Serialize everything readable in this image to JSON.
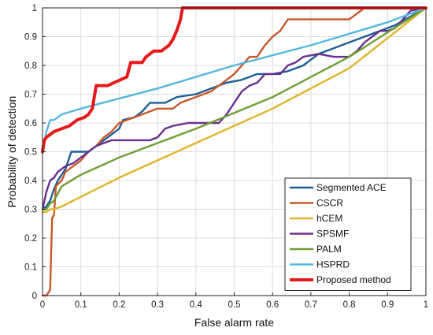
{
  "chart_data": {
    "type": "line",
    "title": "",
    "xlabel": "False alarm rate",
    "ylabel": "Probability of detection",
    "xlim": [
      0,
      1
    ],
    "ylim": [
      0,
      1
    ],
    "xticks": [
      "0",
      "0.1",
      "0.2",
      "0.3",
      "0.4",
      "0.5",
      "0.6",
      "0.7",
      "0.8",
      "0.9",
      "1"
    ],
    "yticks": [
      "0",
      "0.1",
      "0.2",
      "0.3",
      "0.4",
      "0.5",
      "0.6",
      "0.7",
      "0.8",
      "0.9",
      "1"
    ],
    "xtick_values": [
      0,
      0.1,
      0.2,
      0.3,
      0.4,
      0.5,
      0.6,
      0.7,
      0.8,
      0.9,
      1
    ],
    "ytick_values": [
      0,
      0.1,
      0.2,
      0.3,
      0.4,
      0.5,
      0.6,
      0.7,
      0.8,
      0.9,
      1
    ],
    "grid": true,
    "legend_position": "bottom-right",
    "series": [
      {
        "name": "Segmented ACE",
        "color": "#1f5f96",
        "points": [
          [
            0,
            0.3
          ],
          [
            0.01,
            0.31
          ],
          [
            0.02,
            0.33
          ],
          [
            0.03,
            0.37
          ],
          [
            0.04,
            0.4
          ],
          [
            0.05,
            0.42
          ],
          [
            0.06,
            0.44
          ],
          [
            0.075,
            0.5
          ],
          [
            0.1,
            0.5
          ],
          [
            0.12,
            0.5
          ],
          [
            0.14,
            0.52
          ],
          [
            0.17,
            0.55
          ],
          [
            0.2,
            0.58
          ],
          [
            0.21,
            0.61
          ],
          [
            0.24,
            0.62
          ],
          [
            0.26,
            0.64
          ],
          [
            0.28,
            0.67
          ],
          [
            0.32,
            0.67
          ],
          [
            0.35,
            0.69
          ],
          [
            0.4,
            0.7
          ],
          [
            0.44,
            0.72
          ],
          [
            0.48,
            0.74
          ],
          [
            0.52,
            0.75
          ],
          [
            0.56,
            0.77
          ],
          [
            0.6,
            0.77
          ],
          [
            0.64,
            0.78
          ],
          [
            0.68,
            0.8
          ],
          [
            0.72,
            0.84
          ],
          [
            0.76,
            0.86
          ],
          [
            0.8,
            0.88
          ],
          [
            0.84,
            0.9
          ],
          [
            0.88,
            0.92
          ],
          [
            0.92,
            0.94
          ],
          [
            0.96,
            0.97
          ],
          [
            1,
            1
          ]
        ]
      },
      {
        "name": "CSCR",
        "color": "#c8582a",
        "points": [
          [
            0,
            0
          ],
          [
            0.01,
            0
          ],
          [
            0.02,
            0.02
          ],
          [
            0.025,
            0.27
          ],
          [
            0.03,
            0.28
          ],
          [
            0.035,
            0.38
          ],
          [
            0.05,
            0.4
          ],
          [
            0.06,
            0.43
          ],
          [
            0.08,
            0.45
          ],
          [
            0.1,
            0.47
          ],
          [
            0.12,
            0.5
          ],
          [
            0.14,
            0.52
          ],
          [
            0.16,
            0.55
          ],
          [
            0.18,
            0.57
          ],
          [
            0.2,
            0.6
          ],
          [
            0.22,
            0.61
          ],
          [
            0.24,
            0.62
          ],
          [
            0.26,
            0.63
          ],
          [
            0.28,
            0.64
          ],
          [
            0.3,
            0.65
          ],
          [
            0.34,
            0.65
          ],
          [
            0.36,
            0.67
          ],
          [
            0.38,
            0.68
          ],
          [
            0.42,
            0.7
          ],
          [
            0.44,
            0.71
          ],
          [
            0.46,
            0.73
          ],
          [
            0.48,
            0.75
          ],
          [
            0.5,
            0.77
          ],
          [
            0.52,
            0.8
          ],
          [
            0.54,
            0.83
          ],
          [
            0.56,
            0.83
          ],
          [
            0.58,
            0.87
          ],
          [
            0.6,
            0.9
          ],
          [
            0.62,
            0.92
          ],
          [
            0.64,
            0.96
          ],
          [
            0.74,
            0.96
          ],
          [
            0.8,
            0.96
          ],
          [
            0.82,
            0.98
          ],
          [
            0.84,
            1
          ],
          [
            1,
            1
          ]
        ]
      },
      {
        "name": "hCEM",
        "color": "#e0b52c",
        "points": [
          [
            0,
            0.29
          ],
          [
            0.01,
            0.29
          ],
          [
            0.02,
            0.3
          ],
          [
            0.03,
            0.3
          ],
          [
            0.05,
            0.31
          ],
          [
            0.2,
            0.41
          ],
          [
            0.4,
            0.53
          ],
          [
            0.6,
            0.65
          ],
          [
            0.8,
            0.79
          ],
          [
            1,
            1
          ]
        ]
      },
      {
        "name": "SPSMF",
        "color": "#6a2f8e",
        "points": [
          [
            0,
            0.3
          ],
          [
            0.005,
            0.33
          ],
          [
            0.01,
            0.36
          ],
          [
            0.015,
            0.38
          ],
          [
            0.02,
            0.4
          ],
          [
            0.03,
            0.41
          ],
          [
            0.04,
            0.43
          ],
          [
            0.05,
            0.44
          ],
          [
            0.06,
            0.45
          ],
          [
            0.08,
            0.46
          ],
          [
            0.1,
            0.48
          ],
          [
            0.12,
            0.5
          ],
          [
            0.14,
            0.52
          ],
          [
            0.16,
            0.53
          ],
          [
            0.18,
            0.54
          ],
          [
            0.28,
            0.54
          ],
          [
            0.3,
            0.55
          ],
          [
            0.32,
            0.58
          ],
          [
            0.34,
            0.59
          ],
          [
            0.38,
            0.6
          ],
          [
            0.46,
            0.6
          ],
          [
            0.48,
            0.63
          ],
          [
            0.5,
            0.67
          ],
          [
            0.52,
            0.71
          ],
          [
            0.54,
            0.73
          ],
          [
            0.56,
            0.74
          ],
          [
            0.58,
            0.77
          ],
          [
            0.62,
            0.77
          ],
          [
            0.64,
            0.8
          ],
          [
            0.66,
            0.81
          ],
          [
            0.68,
            0.83
          ],
          [
            0.72,
            0.84
          ],
          [
            0.76,
            0.83
          ],
          [
            0.8,
            0.83
          ],
          [
            0.82,
            0.85
          ],
          [
            0.84,
            0.88
          ],
          [
            0.86,
            0.9
          ],
          [
            0.88,
            0.92
          ],
          [
            0.9,
            0.92
          ],
          [
            0.92,
            0.93
          ],
          [
            0.94,
            0.96
          ],
          [
            0.96,
            0.99
          ],
          [
            1,
            1
          ]
        ]
      },
      {
        "name": "PALM",
        "color": "#6e9e35",
        "points": [
          [
            0,
            0.3
          ],
          [
            0.01,
            0.3
          ],
          [
            0.02,
            0.32
          ],
          [
            0.03,
            0.33
          ],
          [
            0.05,
            0.38
          ],
          [
            0.1,
            0.42
          ],
          [
            0.2,
            0.48
          ],
          [
            0.4,
            0.58
          ],
          [
            0.6,
            0.69
          ],
          [
            0.8,
            0.83
          ],
          [
            1,
            1
          ]
        ]
      },
      {
        "name": "HSPRD",
        "color": "#55b8e0",
        "points": [
          [
            0,
            0.52
          ],
          [
            0.005,
            0.53
          ],
          [
            0.01,
            0.57
          ],
          [
            0.02,
            0.61
          ],
          [
            0.03,
            0.61
          ],
          [
            0.04,
            0.62
          ],
          [
            0.05,
            0.63
          ],
          [
            0.1,
            0.65
          ],
          [
            0.3,
            0.72
          ],
          [
            0.5,
            0.8
          ],
          [
            0.7,
            0.87
          ],
          [
            0.9,
            0.95
          ],
          [
            1,
            1
          ]
        ]
      },
      {
        "name": "Proposed method",
        "color": "#e51b1b",
        "points": [
          [
            0,
            0.5
          ],
          [
            0.005,
            0.54
          ],
          [
            0.01,
            0.55
          ],
          [
            0.02,
            0.56
          ],
          [
            0.03,
            0.57
          ],
          [
            0.05,
            0.58
          ],
          [
            0.07,
            0.59
          ],
          [
            0.09,
            0.61
          ],
          [
            0.11,
            0.62
          ],
          [
            0.12,
            0.63
          ],
          [
            0.13,
            0.65
          ],
          [
            0.14,
            0.73
          ],
          [
            0.17,
            0.73
          ],
          [
            0.22,
            0.76
          ],
          [
            0.23,
            0.81
          ],
          [
            0.26,
            0.81
          ],
          [
            0.27,
            0.83
          ],
          [
            0.29,
            0.85
          ],
          [
            0.31,
            0.85
          ],
          [
            0.32,
            0.86
          ],
          [
            0.33,
            0.87
          ],
          [
            0.34,
            0.89
          ],
          [
            0.35,
            0.92
          ],
          [
            0.36,
            0.96
          ],
          [
            0.365,
            1
          ],
          [
            1,
            1
          ]
        ]
      }
    ]
  }
}
